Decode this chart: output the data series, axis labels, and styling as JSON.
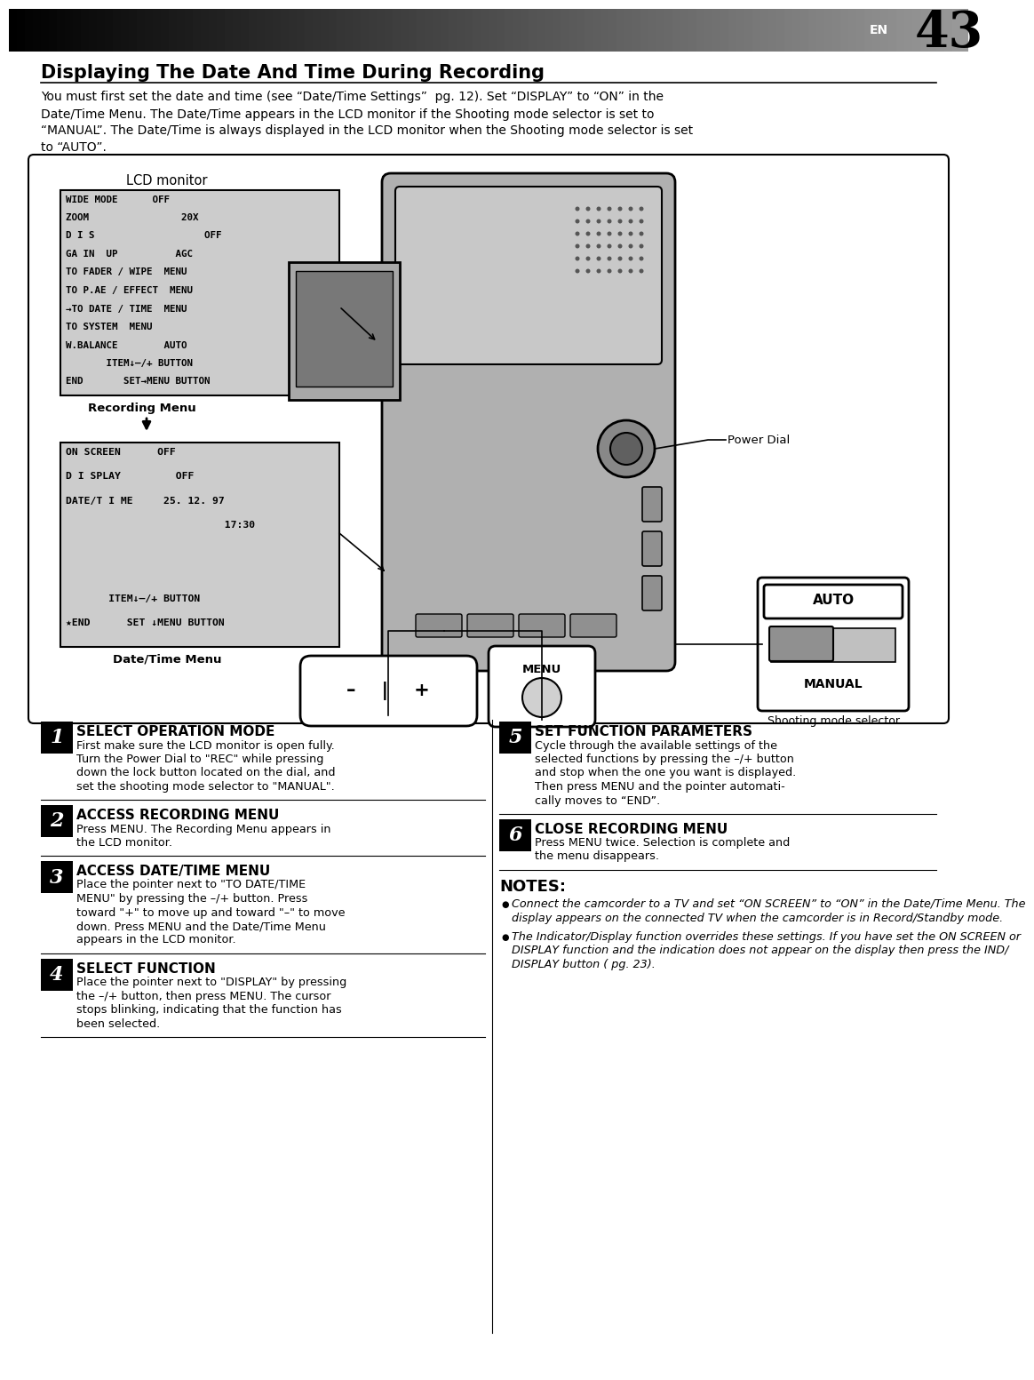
{
  "page_num": "43",
  "title": "Displaying The Date And Time During Recording",
  "intro_lines": [
    "You must first set the date and time (see “Date/Time Settings”  pg. 12). Set “DISPLAY” to “ON” in the",
    "Date/Time Menu. The Date/Time appears in the LCD monitor if the Shooting mode selector is set to",
    "“MANUAL”. The Date/Time is always displayed in the LCD monitor when the Shooting mode selector is set",
    "to “AUTO”."
  ],
  "lcd_monitor_label": "LCD monitor",
  "recording_menu_label": "Recording Menu",
  "datetime_menu_label": "Date/Time Menu",
  "recording_menu_items": [
    "WIDE MODE      OFF",
    "ZOOM                20X",
    "D I S                   OFF",
    "GA IN  UP          AGC",
    "TO FADER / WIPE  MENU",
    "TO P.AE / EFFECT  MENU",
    "→TO DATE / TIME  MENU",
    "TO SYSTEM  MENU",
    "W.BALANCE        AUTO",
    "       ITEM↓–/+ BUTTON",
    "END       SET→MENU BUTTON"
  ],
  "datetime_menu_items": [
    "ON SCREEN      OFF",
    "D I SPLAY         OFF",
    "DATE/T I ME     25. 12. 97",
    "                          17:30",
    "",
    "",
    "       ITEM↓–/+ BUTTON",
    "★END      SET ↓MENU BUTTON"
  ],
  "power_dial_label": "Power Dial",
  "shooting_mode_label": "Shooting mode selector",
  "menu_label": "MENU",
  "auto_label": "AUTO",
  "manual_label": "MANUAL",
  "step1_num": "1",
  "step1_head": "SELECT OPERATION MODE",
  "step1_body": [
    "First make sure the LCD monitor is open fully.",
    "Turn the Power Dial to \"REC\" while pressing",
    "down the lock button located on the dial, and",
    "set the shooting mode selector to \"MANUAL\"."
  ],
  "step2_num": "2",
  "step2_head": "ACCESS RECORDING MENU",
  "step2_body": [
    "Press MENU. The Recording Menu appears in",
    "the LCD monitor."
  ],
  "step3_num": "3",
  "step3_head": "ACCESS DATE/TIME MENU",
  "step3_body": [
    "Place the pointer next to \"TO DATE/TIME",
    "MENU\" by pressing the –/+ button. Press",
    "toward \"+\" to move up and toward \"–\" to move",
    "down. Press MENU and the Date/Time Menu",
    "appears in the LCD monitor."
  ],
  "step4_num": "4",
  "step4_head": "SELECT FUNCTION",
  "step4_body": [
    "Place the pointer next to \"DISPLAY\" by pressing",
    "the –/+ button, then press MENU. The cursor",
    "stops blinking, indicating that the function has",
    "been selected."
  ],
  "step5_num": "5",
  "step5_head": "SET FUNCTION PARAMETERS",
  "step5_body": [
    "Cycle through the available settings of the",
    "selected functions by pressing the –/+ button",
    "and stop when the one you want is displayed.",
    "Then press MENU and the pointer automati-",
    "cally moves to “END”."
  ],
  "step6_num": "6",
  "step6_head": "CLOSE RECORDING MENU",
  "step6_body": [
    "Press MENU twice. Selection is complete and",
    "the menu disappears."
  ],
  "notes_head": "NOTES:",
  "note1_lines": [
    "Connect the camcorder to a TV and set “ON SCREEN” to “ON” in the Date/Time Menu. The",
    "display appears on the connected TV when the camcorder is in Record/Standby mode."
  ],
  "note2_lines": [
    "The Indicator/Display function overrides these settings. If you have set the ON SCREEN or",
    "DISPLAY function and the indication does not appear on the display then press the IND/",
    "DISPLAY button ( pg. 23)."
  ],
  "bg_color": "#ffffff"
}
